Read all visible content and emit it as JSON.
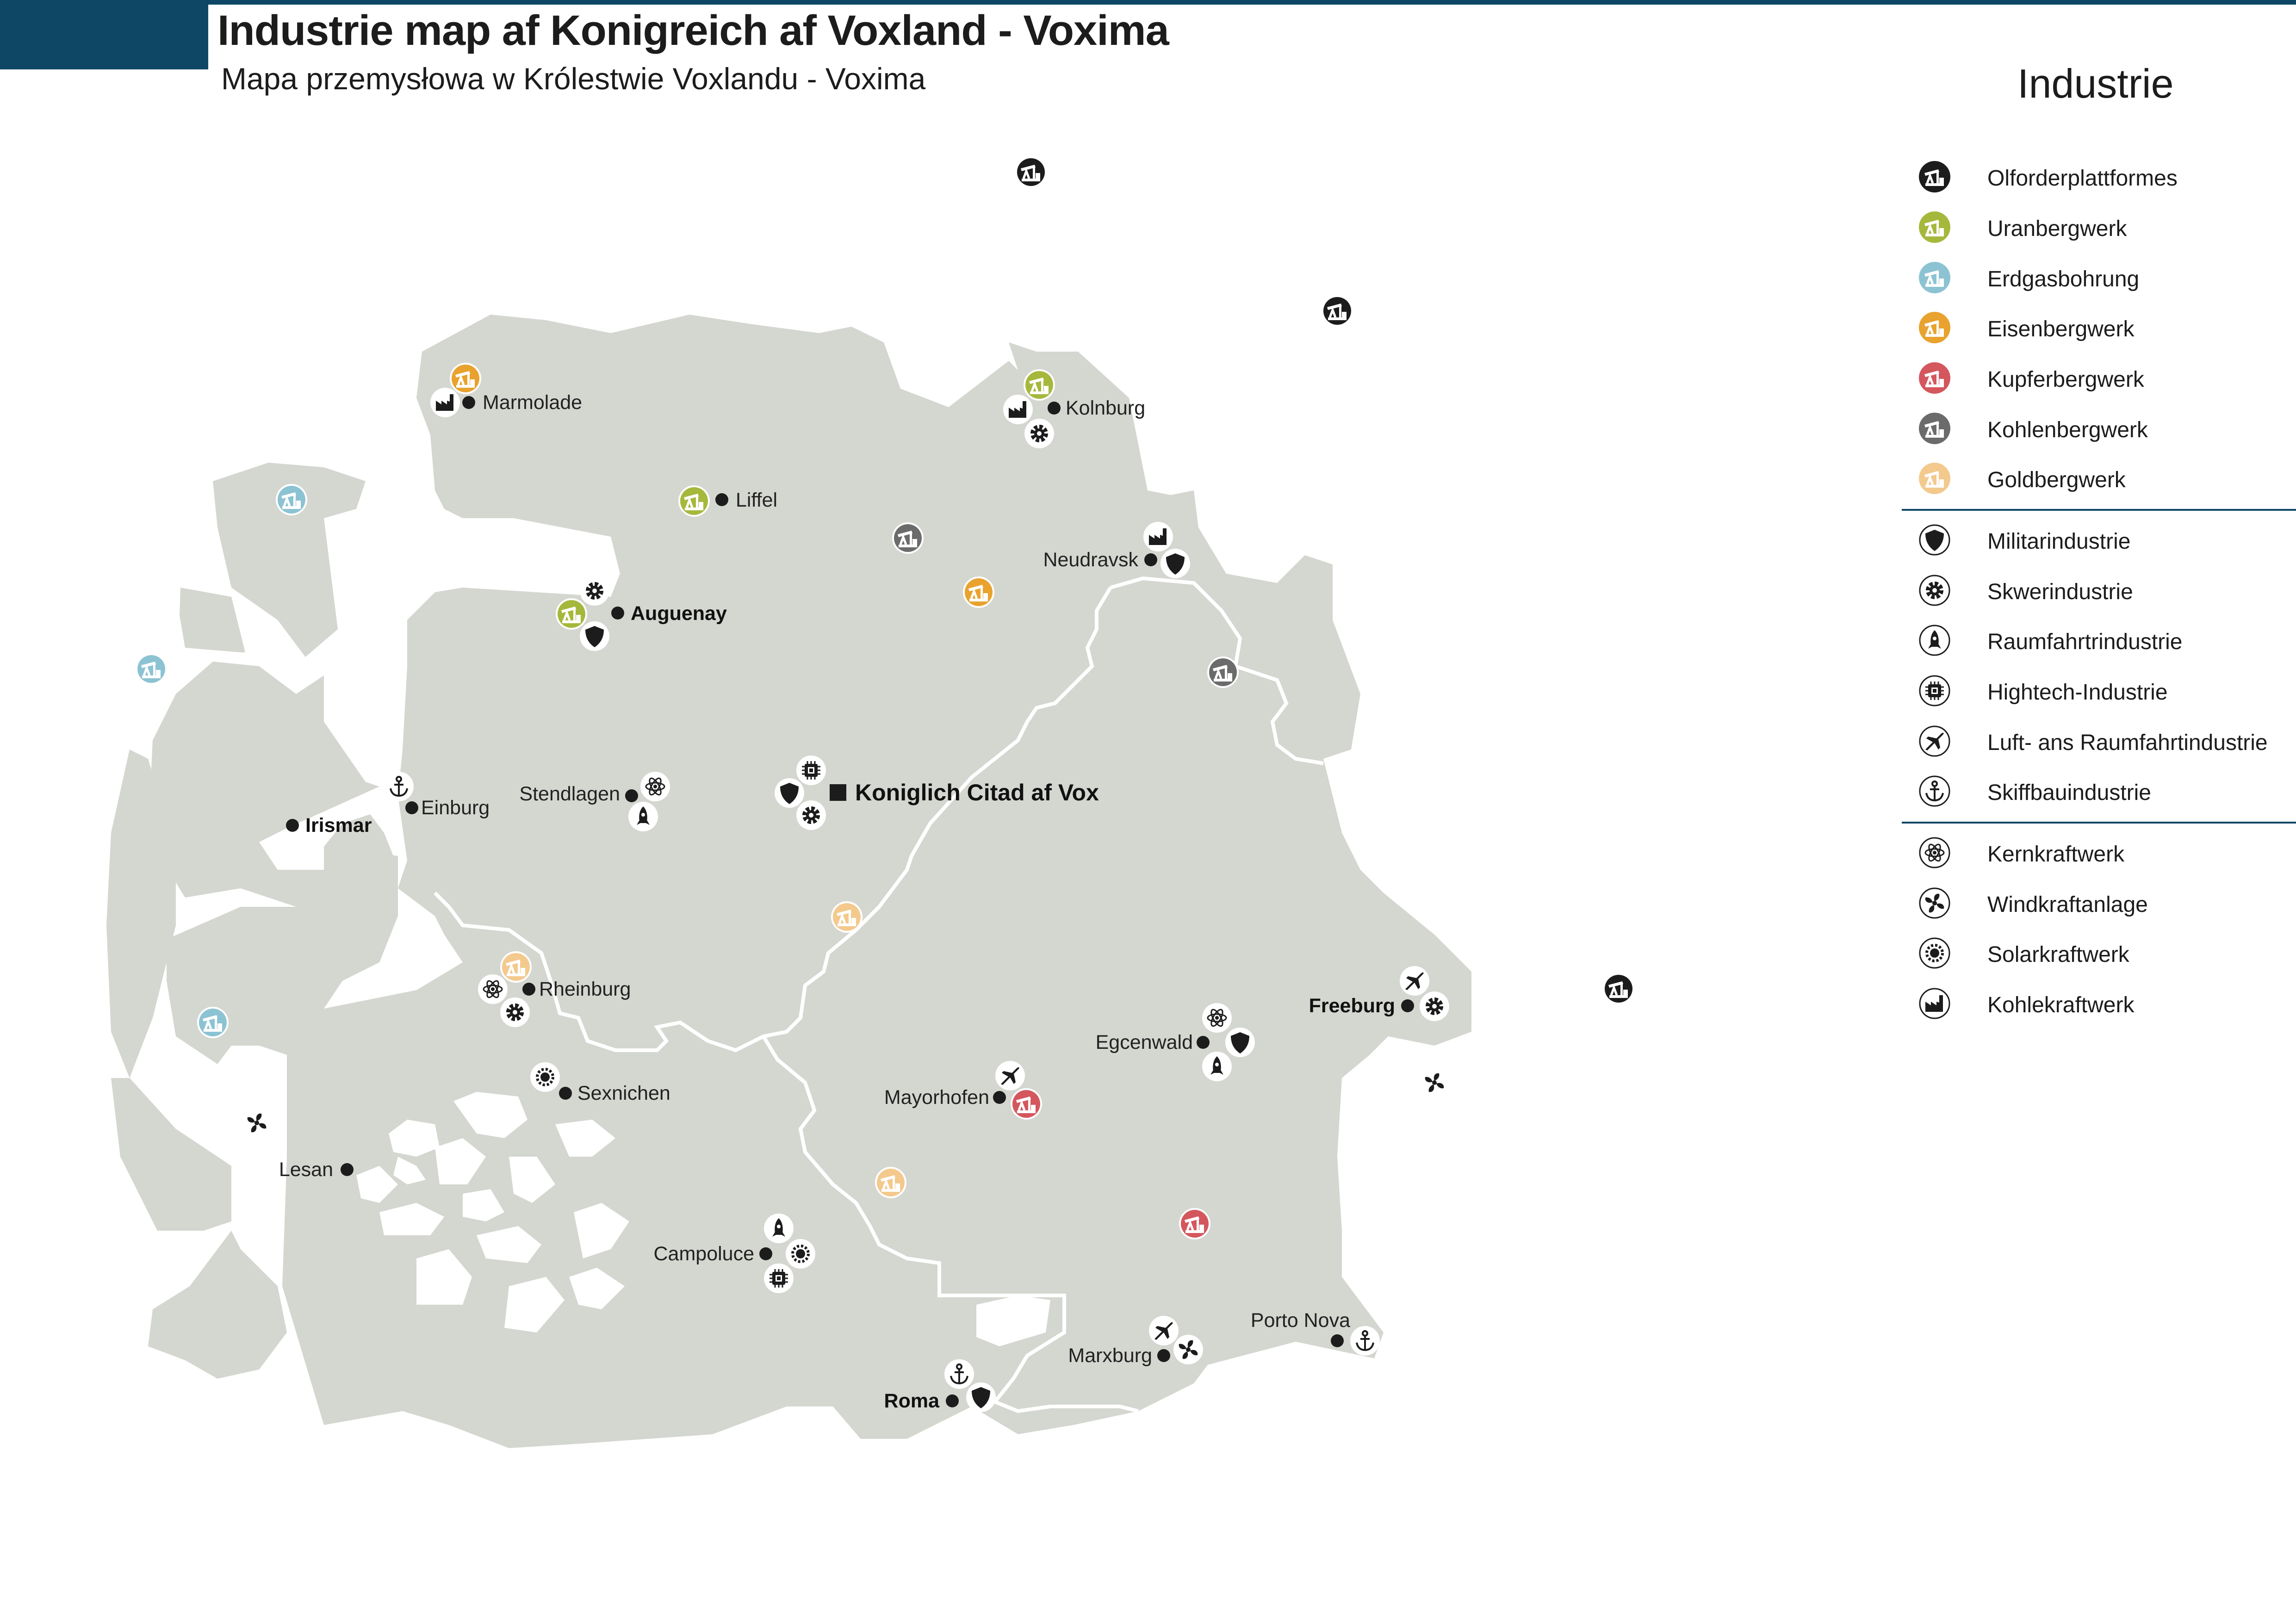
{
  "header": {
    "title": "Industrie map af Konigreich af Voxland - Voxima",
    "subtitle": "Mapa przemysłowa w Królestwie Voxlandu - Voxima"
  },
  "colors": {
    "land": "#d4d6d0",
    "border_line": "#ffffff",
    "accent": "#0e4766",
    "oil": "#1c1c1c",
    "uranium": "#a6b83c",
    "gas": "#8cc3d3",
    "iron": "#e8a22d",
    "copper": "#d4575e",
    "coal_mine": "#6b6b6b",
    "gold": "#f3c98d"
  },
  "legend": {
    "title": "Industrie",
    "items": [
      {
        "label": "Olforderplattformes",
        "icon": "oil-platform-icon",
        "color": "oil"
      },
      {
        "label": "Uranbergwerk",
        "icon": "uranium-mine-icon",
        "color": "uranium"
      },
      {
        "label": "Erdgasbohrung",
        "icon": "gas-drilling-icon",
        "color": "gas"
      },
      {
        "label": "Eisenbergwerk",
        "icon": "iron-mine-icon",
        "color": "iron"
      },
      {
        "label": "Kupferbergwerk",
        "icon": "copper-mine-icon",
        "color": "copper"
      },
      {
        "label": "Kohlenbergwerk",
        "icon": "coal-mine-icon",
        "color": "coal_mine"
      },
      {
        "label": "Goldbergwerk",
        "icon": "gold-mine-icon",
        "color": "gold"
      },
      {
        "label": "Militarindustrie",
        "icon": "shield-icon"
      },
      {
        "label": "Skwerindustrie",
        "icon": "gear-icon"
      },
      {
        "label": "Raumfahrtrindustrie",
        "icon": "rocket-icon"
      },
      {
        "label": "Hightech-Industrie",
        "icon": "chip-icon"
      },
      {
        "label": "Luft- ans Raumfahrtindustrie",
        "icon": "airplane-icon"
      },
      {
        "label": "Skiffbauindustrie",
        "icon": "anchor-icon"
      },
      {
        "label": "Kernkraftwerk",
        "icon": "atom-icon"
      },
      {
        "label": "Windkraftanlage",
        "icon": "wind-turbine-icon"
      },
      {
        "label": "Solarkraftwerk",
        "icon": "sun-icon"
      },
      {
        "label": "Kohlekraftwerk",
        "icon": "factory-icon"
      }
    ]
  },
  "cities": [
    {
      "name": "Marmolade",
      "weight": "normal"
    },
    {
      "name": "Kolnburg",
      "weight": "normal"
    },
    {
      "name": "Liffel",
      "weight": "normal"
    },
    {
      "name": "Neudravsk",
      "weight": "normal"
    },
    {
      "name": "Auguenay",
      "weight": "bold"
    },
    {
      "name": "Stendlagen",
      "weight": "normal"
    },
    {
      "name": "Koniglich Citad af Vox",
      "weight": "capital"
    },
    {
      "name": "Einburg",
      "weight": "normal"
    },
    {
      "name": "Irismar",
      "weight": "bold"
    },
    {
      "name": "Rheinburg",
      "weight": "normal"
    },
    {
      "name": "Sexnichen",
      "weight": "normal"
    },
    {
      "name": "Lesan",
      "weight": "normal"
    },
    {
      "name": "Freeburg",
      "weight": "bold"
    },
    {
      "name": "Egcenwald",
      "weight": "normal"
    },
    {
      "name": "Mayorhofen",
      "weight": "normal"
    },
    {
      "name": "Campoluce",
      "weight": "normal"
    },
    {
      "name": "Porto Nova",
      "weight": "normal"
    },
    {
      "name": "Marxburg",
      "weight": "normal"
    },
    {
      "name": "Roma",
      "weight": "bold"
    }
  ]
}
